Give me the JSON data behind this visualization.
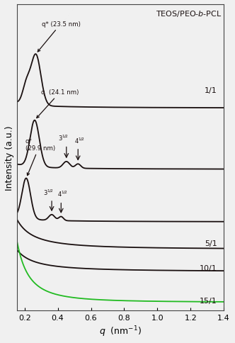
{
  "background_color": "#f0f0f0",
  "line_color_dark": "#1a1010",
  "line_color_green": "#22bb22",
  "xlabel": "$q$  (nm$^{-1}$)",
  "ylabel": "Intensity (a.u.)",
  "title": "TEOS/PEO-$b$-PCL",
  "xmin": 0.155,
  "xmax": 1.4,
  "xticks": [
    0.2,
    0.4,
    0.6,
    0.8,
    1.0,
    1.2,
    1.4
  ],
  "xtick_labels": [
    "0.2",
    "0.4",
    "0.6",
    "0.8",
    "1.0",
    "1.2",
    "1.4"
  ]
}
